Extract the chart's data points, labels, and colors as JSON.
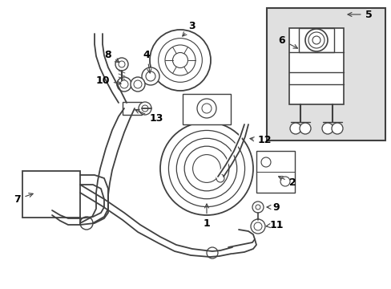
{
  "bg_color": "#ffffff",
  "line_color": "#404040",
  "label_color": "#000000",
  "inset_bg": "#e0e0e0",
  "fig_width": 4.89,
  "fig_height": 3.6,
  "dpi": 100
}
